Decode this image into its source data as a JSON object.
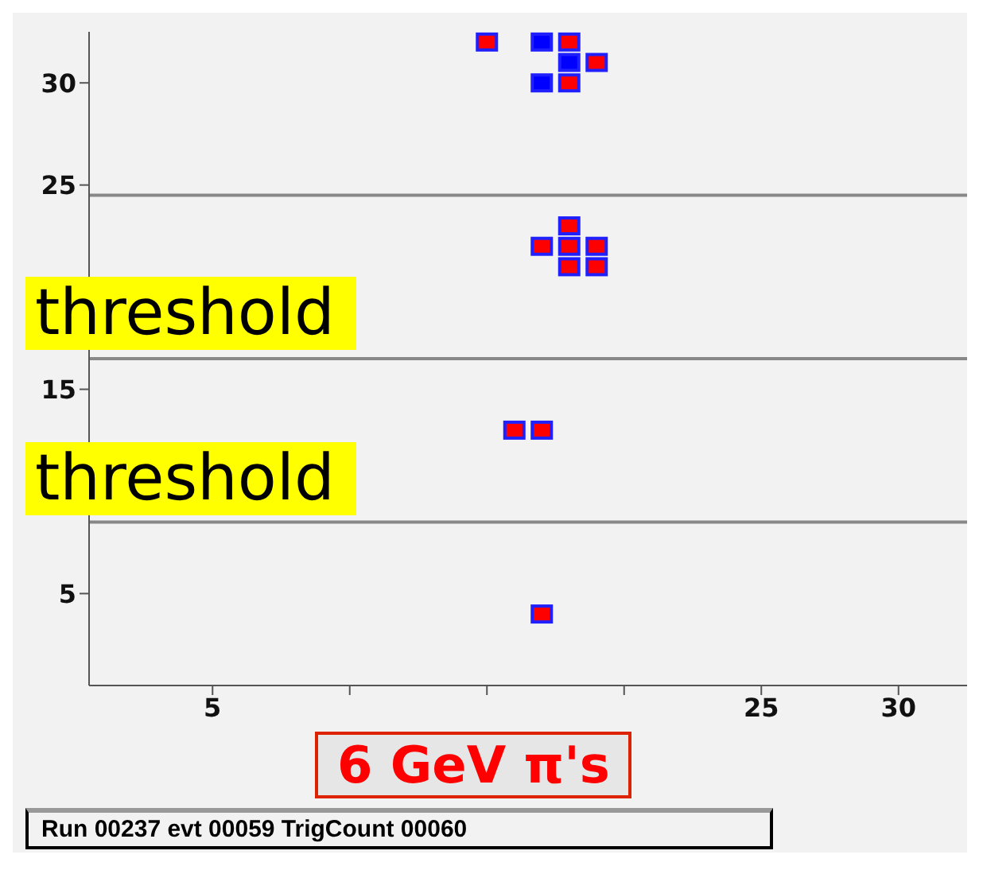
{
  "chart_data": {
    "type": "scatter",
    "marker": "square",
    "xlim": [
      0.5,
      32.5
    ],
    "ylim": [
      0.5,
      32.5
    ],
    "xticks": [
      5,
      {
        "value": 10,
        "label": null
      },
      {
        "value": 15,
        "label": null
      },
      {
        "value": 20,
        "label": null
      },
      25,
      30
    ],
    "yticks": [
      5,
      {
        "value": 10,
        "label": null
      },
      15,
      {
        "value": 20,
        "label": null
      },
      25,
      30
    ],
    "series": [
      {
        "color": "#ff0000",
        "x": [
          15,
          18,
          19,
          18,
          18,
          17,
          18,
          19,
          18,
          19,
          16,
          17,
          17
        ],
        "values": [
          32,
          32,
          31,
          30,
          23,
          22,
          22,
          22,
          21,
          21,
          13,
          13,
          4
        ]
      },
      {
        "color": "#0000ff",
        "x": [
          17,
          18,
          17
        ],
        "values": [
          32,
          31,
          30
        ]
      }
    ],
    "ref_lines": [
      {
        "axis": "y",
        "value": 24.5,
        "color": "#888888"
      },
      {
        "axis": "y",
        "value": 16.5,
        "color": "#888888"
      },
      {
        "axis": "y",
        "value": 8.5,
        "color": "#888888"
      }
    ],
    "annotations": [
      "threshold",
      "threshold",
      "6 GeV π's",
      "Run 00237 evt 00059 TrigCount 00060"
    ]
  }
}
